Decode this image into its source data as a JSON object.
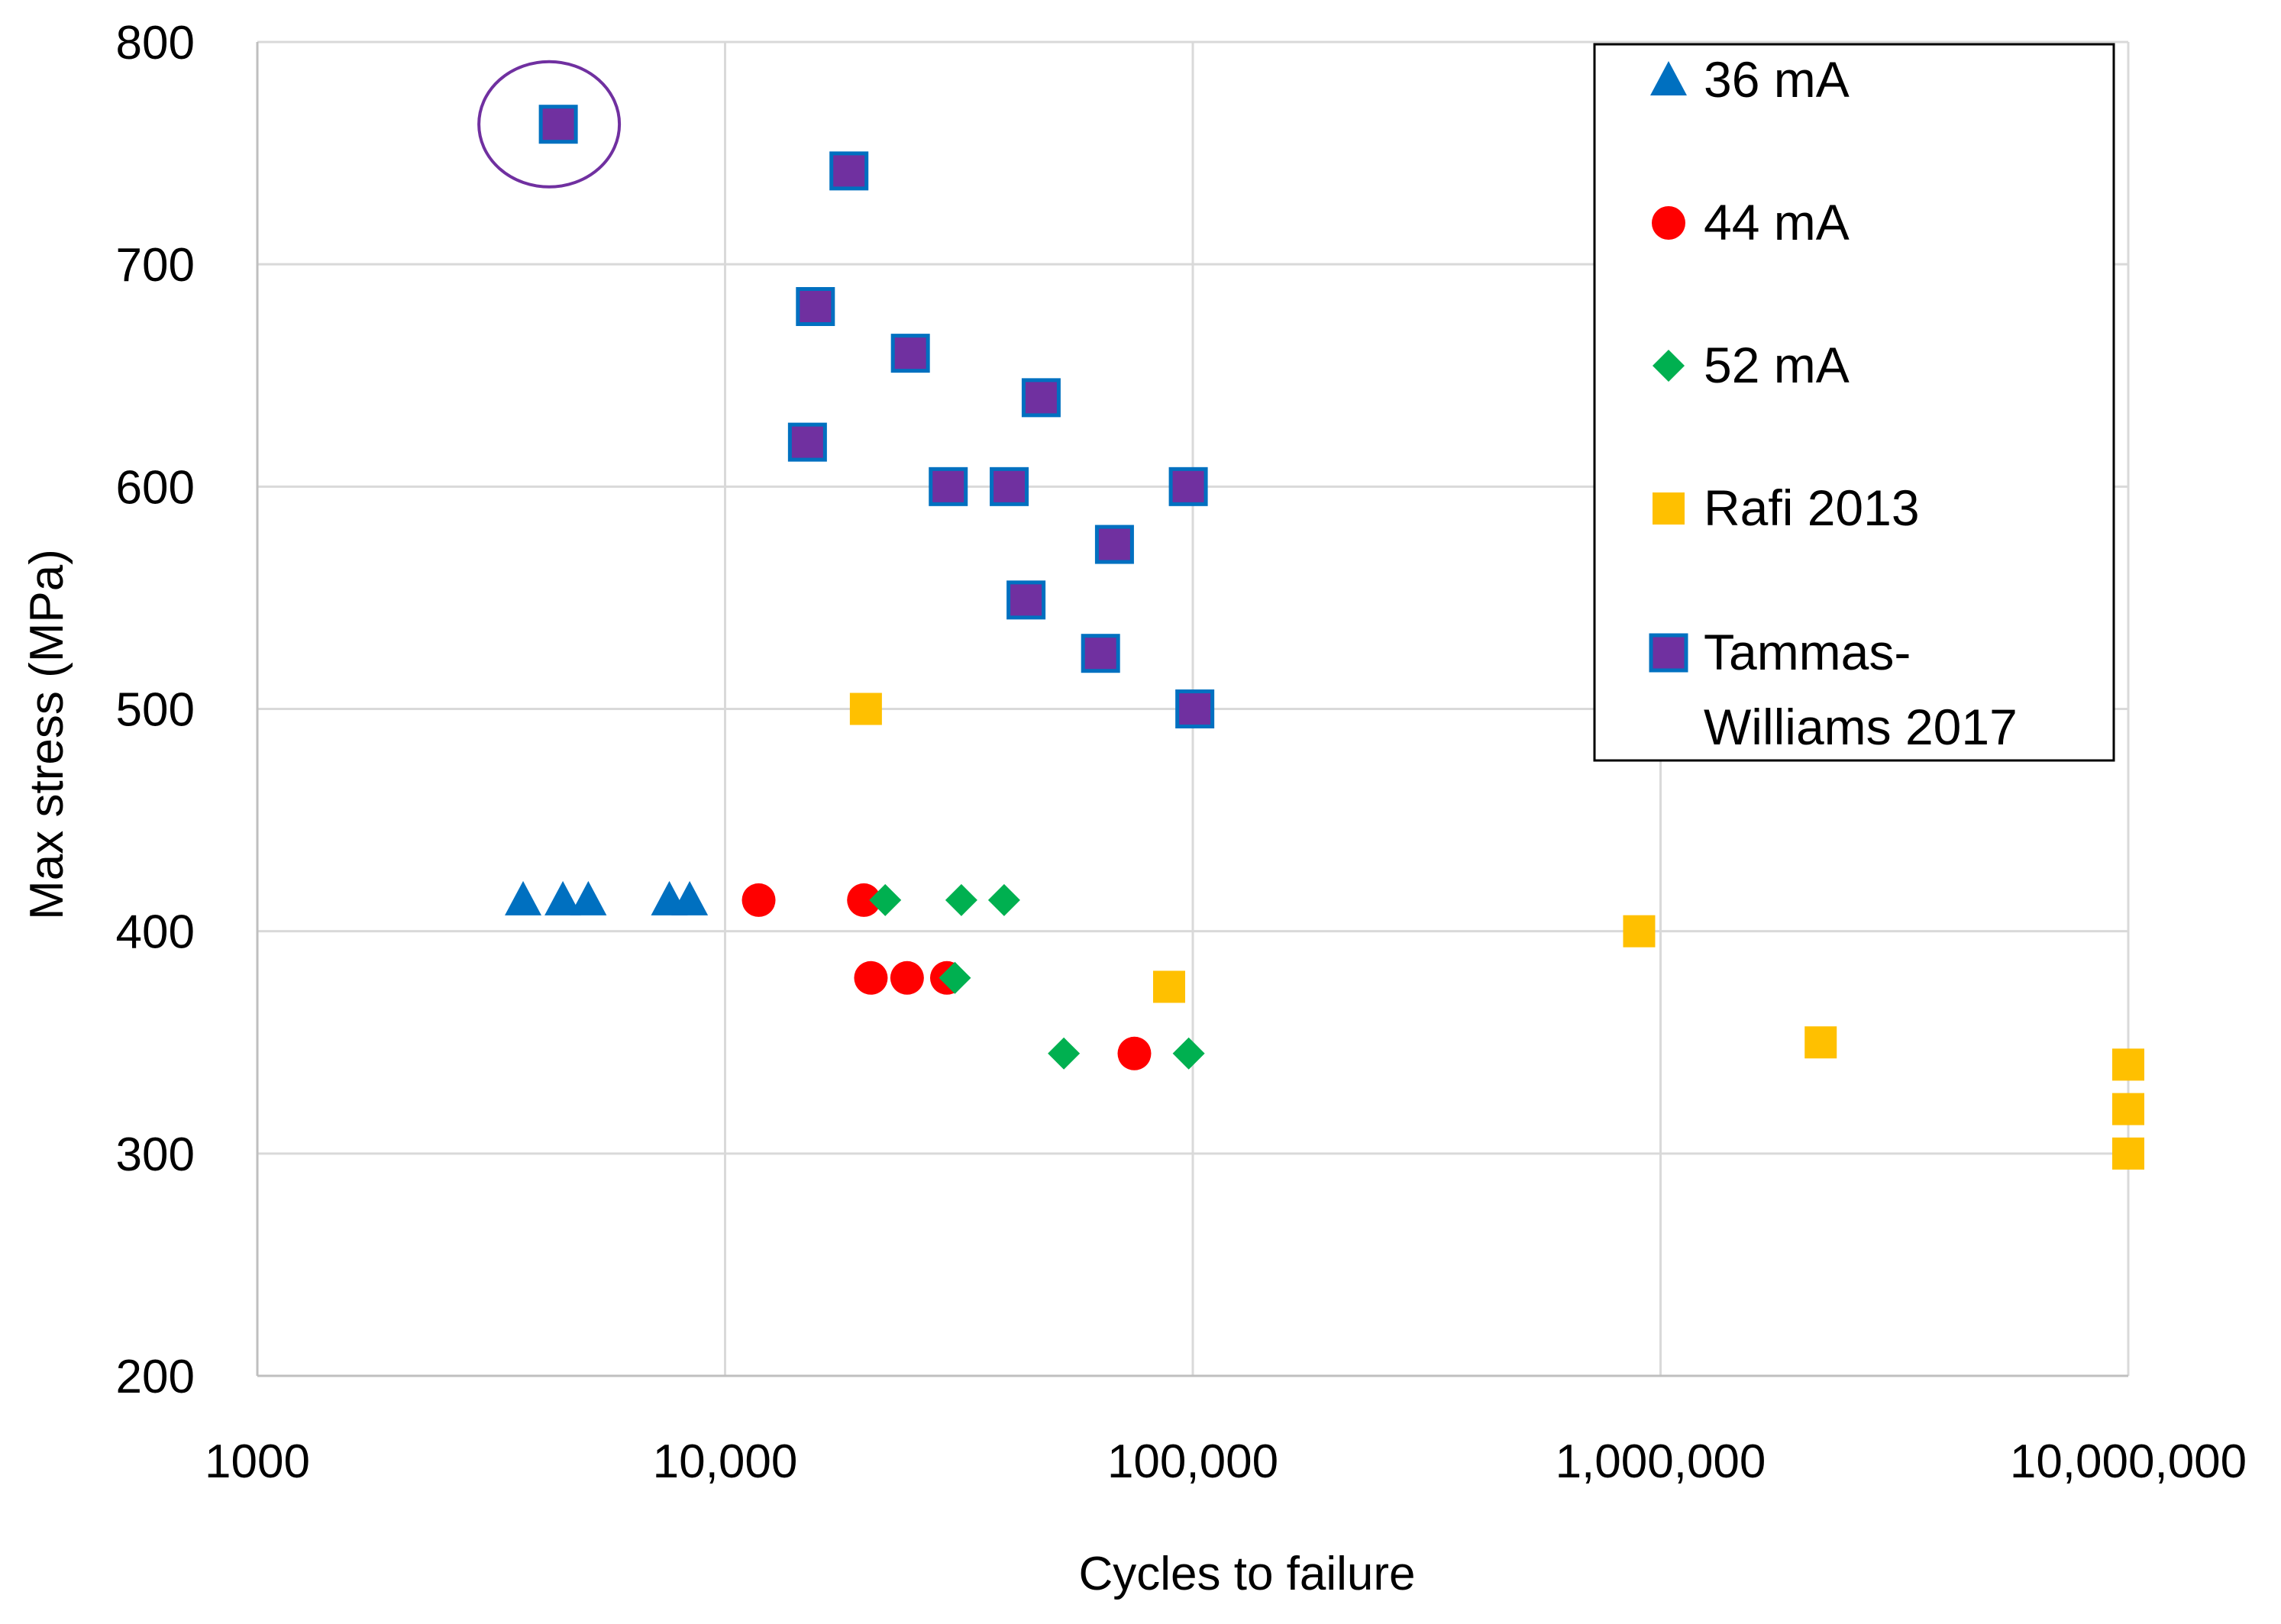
{
  "chart_data": {
    "type": "scatter",
    "title": "",
    "xlabel": "Cycles to failure",
    "ylabel": "Max stress  (MPa)",
    "x_scale": "log",
    "xlim": [
      1000,
      10000000
    ],
    "ylim": [
      200,
      800
    ],
    "grid": true,
    "legend_position": "top-right",
    "x_ticks": [
      {
        "value": 1000,
        "label": "1000"
      },
      {
        "value": 10000,
        "label": "10,000"
      },
      {
        "value": 100000,
        "label": "100,000"
      },
      {
        "value": 1000000,
        "label": "1,000,000"
      },
      {
        "value": 10000000,
        "label": "10,000,000"
      }
    ],
    "y_ticks": [
      {
        "value": 200,
        "label": "200"
      },
      {
        "value": 300,
        "label": "300"
      },
      {
        "value": 400,
        "label": "400"
      },
      {
        "value": 500,
        "label": "500"
      },
      {
        "value": 600,
        "label": "600"
      },
      {
        "value": 700,
        "label": "700"
      },
      {
        "value": 800,
        "label": "800"
      }
    ],
    "series": [
      {
        "name": "36 mA",
        "marker": "triangle",
        "color": "#0070C0",
        "points": [
          [
            3700,
            414
          ],
          [
            4500,
            414
          ],
          [
            5100,
            414
          ],
          [
            7600,
            414
          ],
          [
            8400,
            414
          ]
        ]
      },
      {
        "name": "44 mA",
        "marker": "circle",
        "color": "#FF0000",
        "points": [
          [
            11800,
            414
          ],
          [
            19800,
            414
          ],
          [
            20500,
            379
          ],
          [
            24500,
            379
          ],
          [
            29800,
            379
          ],
          [
            75000,
            345
          ]
        ]
      },
      {
        "name": "52 mA",
        "marker": "diamond",
        "color": "#00B050",
        "points": [
          [
            22000,
            414
          ],
          [
            32000,
            414
          ],
          [
            39500,
            414
          ],
          [
            31000,
            379
          ],
          [
            53000,
            345
          ],
          [
            98000,
            345
          ]
        ]
      },
      {
        "name": "Rafi 2013",
        "marker": "square",
        "color": "#FFC000",
        "points": [
          [
            20000,
            500
          ],
          [
            89000,
            375
          ],
          [
            900000,
            400
          ],
          [
            2200000,
            350
          ],
          [
            10000000,
            340
          ],
          [
            10000000,
            320
          ],
          [
            10000000,
            300
          ]
        ]
      },
      {
        "name": "Tammas-Williams 2017",
        "legend_lines": [
          "Tammas-",
          "Williams 2017"
        ],
        "marker": "square",
        "color": "#7030A0",
        "edge_color": "#0070C0",
        "points": [
          [
            4400,
            763
          ],
          [
            18400,
            742
          ],
          [
            15600,
            681
          ],
          [
            24900,
            660
          ],
          [
            47400,
            640
          ],
          [
            15000,
            620
          ],
          [
            30000,
            600
          ],
          [
            40500,
            600
          ],
          [
            97800,
            600
          ],
          [
            68000,
            574
          ],
          [
            44000,
            549
          ],
          [
            63500,
            525
          ],
          [
            101000,
            500
          ]
        ]
      }
    ],
    "annotation": {
      "shape": "ellipse",
      "around_point": [
        4400,
        763
      ],
      "color": "#7030A0"
    }
  }
}
